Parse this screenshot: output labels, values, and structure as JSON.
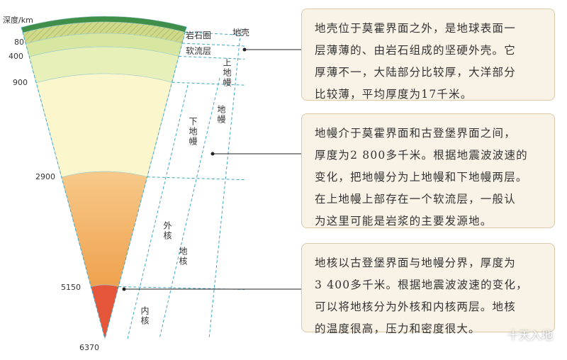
{
  "diagram": {
    "depth_axis": {
      "title": "深度/km",
      "labels": [
        "80",
        "400",
        "900",
        "2900",
        "5150",
        "6370"
      ]
    },
    "layers": {
      "lithosphere": "岩石圈",
      "asthenosphere": "软流层",
      "crust": "地壳",
      "upper_mantle": "上地幔",
      "lower_mantle": "下地幔",
      "mantle": "地幔",
      "outer_core": "外核",
      "core": "地核",
      "inner_core": "内核"
    },
    "boxes": [
      {
        "lines": [
          "地壳位于莫霍界面之外，是地球表面一",
          "层薄薄的、由岩石组成的坚硬外壳。它",
          "厚薄不一，大陆部分比较厚，大洋部分",
          "比较薄，平均厚度为17千米。"
        ]
      },
      {
        "lines": [
          "地幔介于莫霍界面和古登堡界面之间，",
          "厚度为2 800多千米。根据地震波波速的",
          "变化，把地幔分为上地幔和下地幔两层。",
          "在上地幔上部存在一个软流层，一般认",
          "为这里可能是岩浆的主要发源地。"
        ]
      },
      {
        "lines": [
          "地核以古登堡界面与地幔分界，厚度为",
          "3 400多千米。根据地震波波速的变化，",
          "可以将地核分为外核和内核两层。地核",
          "的温度很高，压力和密度很大。"
        ]
      }
    ],
    "watermark": "十天入地"
  }
}
